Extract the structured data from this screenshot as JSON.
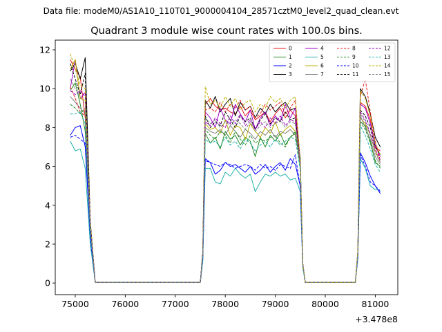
{
  "suptitle": "Data file: modeM0/AS1A10_110T01_9000004104_28571cztM0_level2_quad_clean.evt",
  "chart_data": {
    "type": "line",
    "title": "Quadrant 3 module wise count rates with 100.0s bins.",
    "xlabel": "",
    "ylabel": "",
    "offset_label": "+3.478e8",
    "xlim": [
      74600,
      81450
    ],
    "ylim": [
      -0.6,
      12.5
    ],
    "xticks": [
      75000,
      76000,
      77000,
      78000,
      79000,
      80000,
      81000
    ],
    "yticks": [
      0,
      2,
      4,
      6,
      8,
      10,
      12
    ],
    "grid": false,
    "legend_placement": "top-right",
    "legend_columns": 4,
    "x": [
      74900,
      75000,
      75100,
      75200,
      75300,
      75400,
      75500,
      75600,
      75700,
      75800,
      75900,
      76000,
      76100,
      76200,
      76300,
      76400,
      76500,
      76600,
      76700,
      76800,
      76900,
      77000,
      77100,
      77200,
      77300,
      77400,
      77500,
      77550,
      77600,
      77700,
      77800,
      77900,
      78000,
      78100,
      78200,
      78300,
      78400,
      78500,
      78600,
      78700,
      78800,
      78900,
      79000,
      79100,
      79200,
      79300,
      79400,
      79500,
      79550,
      79600,
      79700,
      79800,
      79900,
      80000,
      80100,
      80200,
      80300,
      80400,
      80500,
      80600,
      80650,
      80700,
      80800,
      80900,
      81000,
      81100
    ],
    "series": [
      {
        "name": "0",
        "color": "#e41a1c",
        "dash": false,
        "values": [
          11.5,
          11.0,
          10.6,
          8.5,
          3.0,
          0.03,
          0.03,
          0.03,
          0.03,
          0.03,
          0.03,
          0.03,
          0.03,
          0.03,
          0.03,
          0.03,
          0.03,
          0.03,
          0.03,
          0.03,
          0.03,
          0.03,
          0.03,
          0.03,
          0.03,
          0.03,
          0.03,
          1.5,
          9.2,
          9.5,
          9.1,
          8.9,
          9.0,
          8.8,
          8.7,
          9.1,
          8.6,
          8.9,
          8.4,
          8.6,
          8.8,
          8.3,
          8.7,
          9.0,
          8.5,
          8.9,
          8.6,
          6.1,
          1.0,
          0.03,
          0.03,
          0.03,
          0.03,
          0.03,
          0.03,
          0.03,
          0.03,
          0.03,
          0.03,
          0.03,
          1.5,
          9.3,
          9.1,
          8.4,
          7.0,
          6.8
        ]
      },
      {
        "name": "1",
        "color": "#228b22",
        "dash": false,
        "values": [
          9.9,
          10.3,
          9.2,
          7.8,
          2.9,
          0.03,
          0.03,
          0.03,
          0.03,
          0.03,
          0.03,
          0.03,
          0.03,
          0.03,
          0.03,
          0.03,
          0.03,
          0.03,
          0.03,
          0.03,
          0.03,
          0.03,
          0.03,
          0.03,
          0.03,
          0.03,
          0.03,
          1.4,
          7.7,
          7.2,
          7.5,
          6.9,
          7.8,
          7.4,
          7.6,
          7.1,
          7.5,
          7.3,
          6.5,
          7.5,
          7.0,
          7.6,
          7.3,
          7.7,
          7.1,
          7.5,
          7.7,
          6.5,
          1.0,
          0.03,
          0.03,
          0.03,
          0.03,
          0.03,
          0.03,
          0.03,
          0.03,
          0.03,
          0.03,
          0.03,
          1.5,
          8.3,
          8.1,
          7.3,
          6.2,
          6.0
        ]
      },
      {
        "name": "2",
        "color": "#0000ff",
        "dash": false,
        "values": [
          7.6,
          8.0,
          8.1,
          7.0,
          2.5,
          0.03,
          0.03,
          0.03,
          0.03,
          0.03,
          0.03,
          0.03,
          0.03,
          0.03,
          0.03,
          0.03,
          0.03,
          0.03,
          0.03,
          0.03,
          0.03,
          0.03,
          0.03,
          0.03,
          0.03,
          0.03,
          0.03,
          1.2,
          6.4,
          6.2,
          5.6,
          5.8,
          6.2,
          6.0,
          6.1,
          5.9,
          5.7,
          6.0,
          5.6,
          5.8,
          6.1,
          5.7,
          6.0,
          6.2,
          5.8,
          6.4,
          6.1,
          5.0,
          0.9,
          0.03,
          0.03,
          0.03,
          0.03,
          0.03,
          0.03,
          0.03,
          0.03,
          0.03,
          0.03,
          0.03,
          1.3,
          6.7,
          6.2,
          5.5,
          5.0,
          4.6
        ]
      },
      {
        "name": "3",
        "color": "#000000",
        "dash": false,
        "values": [
          10.9,
          11.3,
          10.5,
          11.6,
          3.2,
          0.03,
          0.03,
          0.03,
          0.03,
          0.03,
          0.03,
          0.03,
          0.03,
          0.03,
          0.03,
          0.03,
          0.03,
          0.03,
          0.03,
          0.03,
          0.03,
          0.03,
          0.03,
          0.03,
          0.03,
          0.03,
          0.03,
          1.6,
          9.4,
          9.0,
          9.6,
          8.8,
          9.2,
          9.5,
          8.6,
          9.3,
          8.9,
          9.1,
          8.5,
          9.0,
          8.7,
          9.2,
          8.8,
          9.1,
          9.3,
          8.9,
          9.0,
          6.2,
          1.0,
          0.03,
          0.03,
          0.03,
          0.03,
          0.03,
          0.03,
          0.03,
          0.03,
          0.03,
          0.03,
          0.03,
          1.6,
          10.0,
          9.6,
          8.7,
          7.5,
          7.0
        ]
      },
      {
        "name": "4",
        "color": "#a000c8",
        "dash": false,
        "values": [
          10.0,
          11.5,
          9.5,
          9.8,
          3.1,
          0.03,
          0.03,
          0.03,
          0.03,
          0.03,
          0.03,
          0.03,
          0.03,
          0.03,
          0.03,
          0.03,
          0.03,
          0.03,
          0.03,
          0.03,
          0.03,
          0.03,
          0.03,
          0.03,
          0.03,
          0.03,
          0.03,
          1.5,
          8.8,
          8.5,
          8.0,
          9.0,
          8.4,
          8.2,
          9.2,
          8.7,
          8.3,
          8.9,
          7.9,
          8.5,
          8.8,
          8.1,
          8.6,
          8.3,
          9.2,
          8.5,
          9.0,
          6.3,
          1.0,
          0.03,
          0.03,
          0.03,
          0.03,
          0.03,
          0.03,
          0.03,
          0.03,
          0.03,
          0.03,
          0.03,
          1.5,
          9.2,
          9.0,
          8.2,
          7.1,
          6.5
        ]
      },
      {
        "name": "5",
        "color": "#20b2aa",
        "dash": false,
        "values": [
          7.3,
          6.8,
          6.9,
          5.9,
          2.0,
          0.03,
          0.03,
          0.03,
          0.03,
          0.03,
          0.03,
          0.03,
          0.03,
          0.03,
          0.03,
          0.03,
          0.03,
          0.03,
          0.03,
          0.03,
          0.03,
          0.03,
          0.03,
          0.03,
          0.03,
          0.03,
          0.03,
          1.1,
          5.9,
          5.9,
          5.2,
          5.1,
          5.7,
          5.5,
          5.9,
          5.6,
          5.4,
          5.6,
          4.7,
          5.2,
          5.6,
          5.5,
          5.7,
          5.5,
          5.6,
          5.3,
          5.4,
          4.7,
          0.8,
          0.03,
          0.03,
          0.03,
          0.03,
          0.03,
          0.03,
          0.03,
          0.03,
          0.03,
          0.03,
          0.03,
          1.2,
          6.4,
          5.9,
          5.0,
          4.8,
          4.8
        ]
      },
      {
        "name": "6",
        "color": "#bdb000",
        "dash": false,
        "values": [
          11.0,
          11.5,
          9.5,
          9.4,
          3.0,
          0.03,
          0.03,
          0.03,
          0.03,
          0.03,
          0.03,
          0.03,
          0.03,
          0.03,
          0.03,
          0.03,
          0.03,
          0.03,
          0.03,
          0.03,
          0.03,
          0.03,
          0.03,
          0.03,
          0.03,
          0.03,
          0.03,
          1.4,
          8.2,
          7.9,
          8.0,
          7.7,
          8.4,
          7.6,
          8.1,
          8.0,
          7.4,
          8.2,
          7.8,
          7.5,
          8.0,
          7.7,
          8.3,
          7.6,
          7.9,
          8.1,
          7.8,
          6.0,
          1.0,
          0.03,
          0.03,
          0.03,
          0.03,
          0.03,
          0.03,
          0.03,
          0.03,
          0.03,
          0.03,
          0.03,
          1.5,
          8.5,
          8.2,
          7.6,
          6.8,
          6.2
        ]
      },
      {
        "name": "7",
        "color": "#808080",
        "dash": false,
        "values": [
          9.6,
          9.3,
          9.0,
          8.7,
          2.8,
          0.03,
          0.03,
          0.03,
          0.03,
          0.03,
          0.03,
          0.03,
          0.03,
          0.03,
          0.03,
          0.03,
          0.03,
          0.03,
          0.03,
          0.03,
          0.03,
          0.03,
          0.03,
          0.03,
          0.03,
          0.03,
          0.03,
          1.4,
          8.0,
          7.8,
          7.7,
          7.9,
          7.6,
          8.1,
          7.8,
          7.5,
          7.9,
          7.7,
          7.4,
          7.8,
          7.6,
          7.9,
          7.5,
          7.8,
          7.7,
          7.9,
          7.6,
          6.2,
          1.0,
          0.03,
          0.03,
          0.03,
          0.03,
          0.03,
          0.03,
          0.03,
          0.03,
          0.03,
          0.03,
          0.03,
          1.4,
          8.6,
          8.0,
          7.4,
          6.5,
          6.1
        ]
      },
      {
        "name": "8",
        "color": "#e41a1c",
        "dash": true,
        "values": [
          10.1,
          9.5,
          8.8,
          8.6,
          2.9,
          0.03,
          0.03,
          0.03,
          0.03,
          0.03,
          0.03,
          0.03,
          0.03,
          0.03,
          0.03,
          0.03,
          0.03,
          0.03,
          0.03,
          0.03,
          0.03,
          0.03,
          0.03,
          0.03,
          0.03,
          0.03,
          0.03,
          1.5,
          8.9,
          9.0,
          8.8,
          9.3,
          8.8,
          9.2,
          9.0,
          9.4,
          8.9,
          9.1,
          8.5,
          8.7,
          9.2,
          8.9,
          9.1,
          9.3,
          8.7,
          9.0,
          9.4,
          6.1,
          1.0,
          0.03,
          0.03,
          0.03,
          0.03,
          0.03,
          0.03,
          0.03,
          0.03,
          0.03,
          0.03,
          0.03,
          1.6,
          9.6,
          10.5,
          8.8,
          7.3,
          6.3
        ]
      },
      {
        "name": "9",
        "color": "#228b22",
        "dash": true,
        "values": [
          9.2,
          9.0,
          8.7,
          9.0,
          2.8,
          0.03,
          0.03,
          0.03,
          0.03,
          0.03,
          0.03,
          0.03,
          0.03,
          0.03,
          0.03,
          0.03,
          0.03,
          0.03,
          0.03,
          0.03,
          0.03,
          0.03,
          0.03,
          0.03,
          0.03,
          0.03,
          0.03,
          1.3,
          7.9,
          7.6,
          7.4,
          7.8,
          7.6,
          7.2,
          7.8,
          7.4,
          7.1,
          7.6,
          7.2,
          7.4,
          7.3,
          7.5,
          7.6,
          7.2,
          7.0,
          7.5,
          7.8,
          6.0,
          1.0,
          0.03,
          0.03,
          0.03,
          0.03,
          0.03,
          0.03,
          0.03,
          0.03,
          0.03,
          0.03,
          0.03,
          1.4,
          8.3,
          7.9,
          7.2,
          6.3,
          5.9
        ]
      },
      {
        "name": "10",
        "color": "#0000ff",
        "dash": true,
        "values": [
          7.5,
          7.6,
          7.4,
          7.2,
          2.3,
          0.03,
          0.03,
          0.03,
          0.03,
          0.03,
          0.03,
          0.03,
          0.03,
          0.03,
          0.03,
          0.03,
          0.03,
          0.03,
          0.03,
          0.03,
          0.03,
          0.03,
          0.03,
          0.03,
          0.03,
          0.03,
          0.03,
          1.2,
          6.3,
          6.2,
          6.1,
          6.0,
          6.2,
          6.1,
          5.9,
          6.0,
          6.1,
          6.0,
          5.8,
          6.1,
          5.9,
          6.0,
          5.8,
          6.1,
          6.0,
          5.9,
          6.6,
          4.9,
          0.9,
          0.03,
          0.03,
          0.03,
          0.03,
          0.03,
          0.03,
          0.03,
          0.03,
          0.03,
          0.03,
          0.03,
          1.3,
          6.6,
          6.0,
          5.2,
          5.0,
          4.7
        ]
      },
      {
        "name": "11",
        "color": "#000000",
        "dash": true,
        "values": [
          11.3,
          10.5,
          9.7,
          10.8,
          3.1,
          0.03,
          0.03,
          0.03,
          0.03,
          0.03,
          0.03,
          0.03,
          0.03,
          0.03,
          0.03,
          0.03,
          0.03,
          0.03,
          0.03,
          0.03,
          0.03,
          0.03,
          0.03,
          0.03,
          0.03,
          0.03,
          0.03,
          1.5,
          8.6,
          8.0,
          8.3,
          8.1,
          8.8,
          8.4,
          8.0,
          8.6,
          8.3,
          8.5,
          7.9,
          8.4,
          8.7,
          8.2,
          8.5,
          8.3,
          8.8,
          8.4,
          8.5,
          6.2,
          1.0,
          0.03,
          0.03,
          0.03,
          0.03,
          0.03,
          0.03,
          0.03,
          0.03,
          0.03,
          0.03,
          0.03,
          1.5,
          8.9,
          8.6,
          8.0,
          7.0,
          6.6
        ]
      },
      {
        "name": "12",
        "color": "#a000c8",
        "dash": true,
        "values": [
          9.9,
          9.7,
          9.9,
          9.6,
          3.0,
          0.03,
          0.03,
          0.03,
          0.03,
          0.03,
          0.03,
          0.03,
          0.03,
          0.03,
          0.03,
          0.03,
          0.03,
          0.03,
          0.03,
          0.03,
          0.03,
          0.03,
          0.03,
          0.03,
          0.03,
          0.03,
          0.03,
          1.4,
          8.3,
          8.1,
          8.5,
          8.2,
          8.0,
          8.6,
          8.2,
          8.7,
          8.1,
          8.4,
          7.9,
          8.3,
          8.0,
          8.5,
          8.2,
          8.6,
          8.1,
          8.4,
          8.3,
          6.1,
          1.0,
          0.03,
          0.03,
          0.03,
          0.03,
          0.03,
          0.03,
          0.03,
          0.03,
          0.03,
          0.03,
          0.03,
          1.5,
          8.8,
          8.4,
          7.7,
          6.9,
          6.3
        ]
      },
      {
        "name": "13",
        "color": "#20b2aa",
        "dash": true,
        "values": [
          8.7,
          8.7,
          8.8,
          8.2,
          2.6,
          0.03,
          0.03,
          0.03,
          0.03,
          0.03,
          0.03,
          0.03,
          0.03,
          0.03,
          0.03,
          0.03,
          0.03,
          0.03,
          0.03,
          0.03,
          0.03,
          0.03,
          0.03,
          0.03,
          0.03,
          0.03,
          0.03,
          1.3,
          7.4,
          7.2,
          7.3,
          7.0,
          7.5,
          7.1,
          7.3,
          6.9,
          7.4,
          7.2,
          6.8,
          7.1,
          7.3,
          7.0,
          7.4,
          7.1,
          7.3,
          7.5,
          7.4,
          5.8,
          0.9,
          0.03,
          0.03,
          0.03,
          0.03,
          0.03,
          0.03,
          0.03,
          0.03,
          0.03,
          0.03,
          0.03,
          1.4,
          8.1,
          7.6,
          6.9,
          6.1,
          5.7
        ]
      },
      {
        "name": "14",
        "color": "#bdb000",
        "dash": true,
        "values": [
          11.8,
          11.0,
          10.2,
          10.0,
          3.2,
          0.03,
          0.03,
          0.03,
          0.03,
          0.03,
          0.03,
          0.03,
          0.03,
          0.03,
          0.03,
          0.03,
          0.03,
          0.03,
          0.03,
          0.03,
          0.03,
          0.03,
          0.03,
          0.03,
          0.03,
          0.03,
          0.03,
          1.6,
          10.1,
          9.2,
          9.4,
          9.0,
          9.6,
          9.1,
          9.5,
          8.9,
          9.3,
          9.4,
          8.8,
          9.2,
          9.0,
          9.6,
          9.3,
          9.5,
          9.0,
          9.4,
          9.6,
          6.3,
          1.0,
          0.03,
          0.03,
          0.03,
          0.03,
          0.03,
          0.03,
          0.03,
          0.03,
          0.03,
          0.03,
          0.03,
          1.6,
          9.9,
          9.5,
          8.6,
          7.2,
          6.6
        ]
      },
      {
        "name": "15",
        "color": "#808080",
        "dash": true,
        "values": [
          10.5,
          10.0,
          9.6,
          9.2,
          2.9,
          0.03,
          0.03,
          0.03,
          0.03,
          0.03,
          0.03,
          0.03,
          0.03,
          0.03,
          0.03,
          0.03,
          0.03,
          0.03,
          0.03,
          0.03,
          0.03,
          0.03,
          0.03,
          0.03,
          0.03,
          0.03,
          0.03,
          1.5,
          8.5,
          8.2,
          8.4,
          8.0,
          8.3,
          8.1,
          8.4,
          8.2,
          7.9,
          8.3,
          7.8,
          8.1,
          8.3,
          8.0,
          8.2,
          8.4,
          8.0,
          8.3,
          8.2,
          6.2,
          1.0,
          0.03,
          0.03,
          0.03,
          0.03,
          0.03,
          0.03,
          0.03,
          0.03,
          0.03,
          0.03,
          0.03,
          1.5,
          8.7,
          8.3,
          7.6,
          6.7,
          6.2
        ]
      }
    ]
  }
}
